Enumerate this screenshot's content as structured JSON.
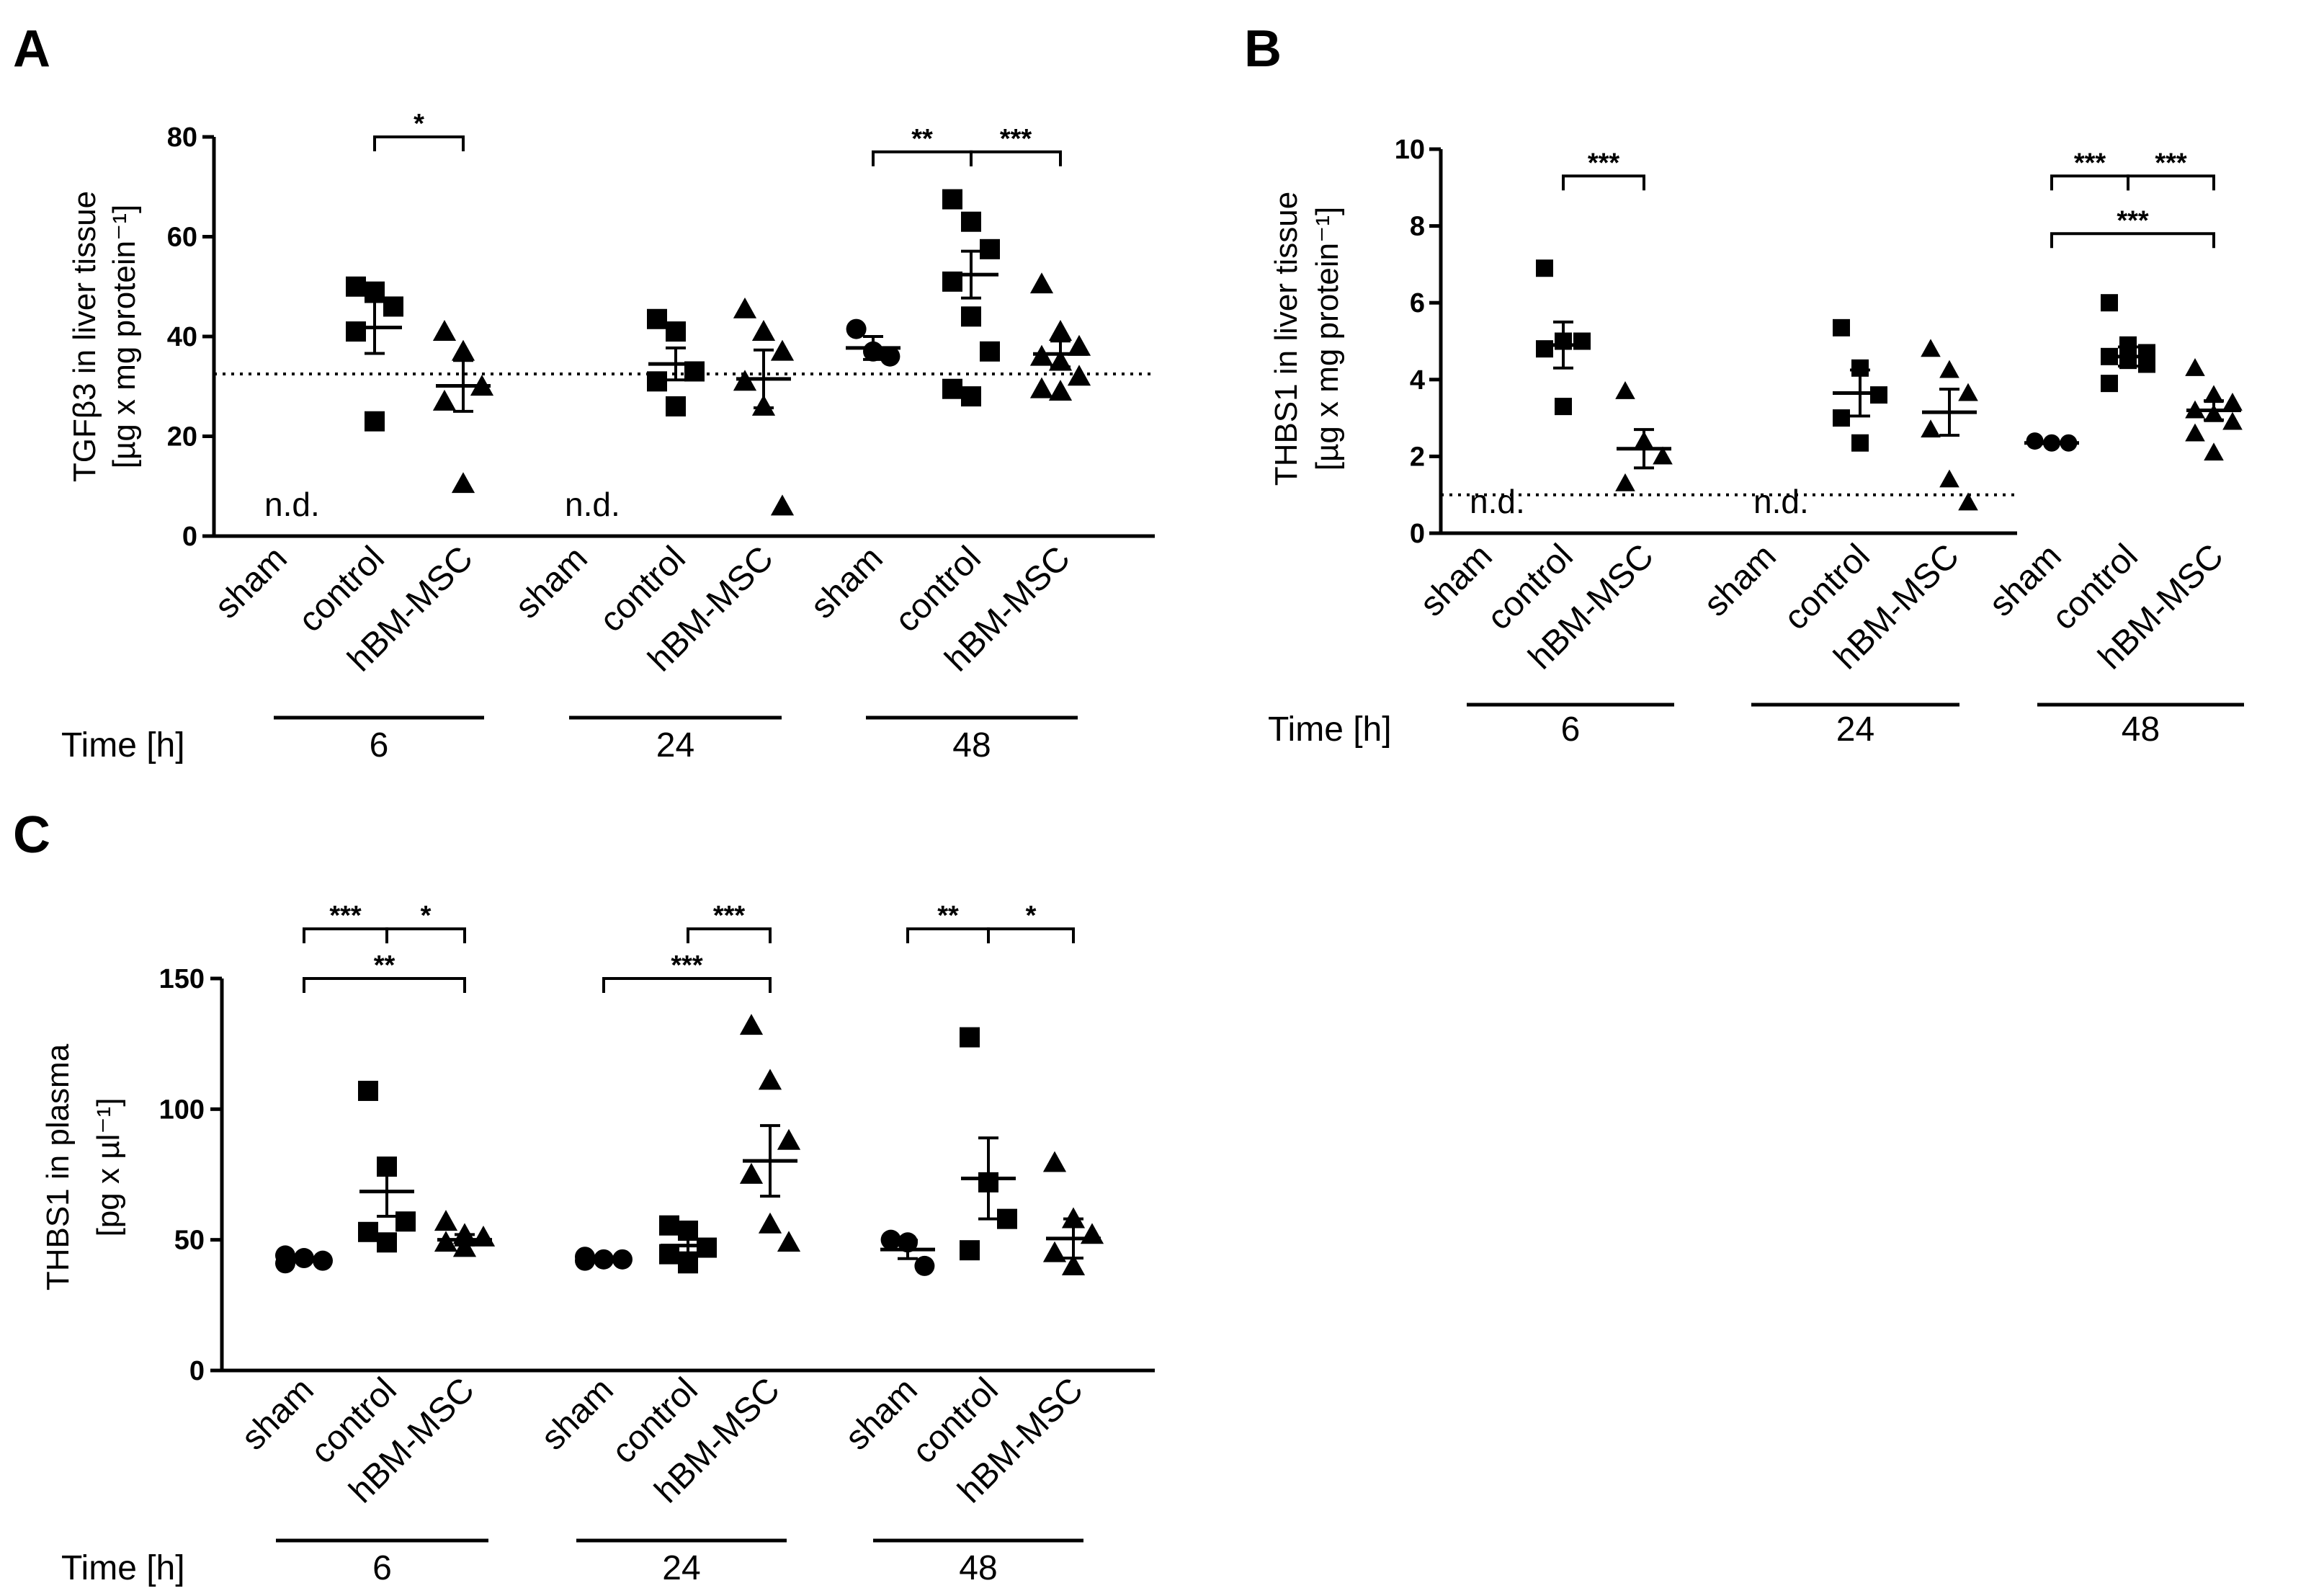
{
  "chart_data": [
    {
      "panel": "A",
      "type": "scatter",
      "ylabel": [
        "TGFβ3 in liver tissue",
        "[µg x mg protein⁻¹]"
      ],
      "ylim": [
        0,
        80
      ],
      "yticks": [
        "0",
        "20",
        "40",
        "60",
        "80"
      ],
      "reference_line": 32.5,
      "time_label": "Time  [h]",
      "groups": [
        {
          "time": "6",
          "nd_label": "n.d.",
          "categories": [
            "sham",
            "control",
            "hBM-MSC"
          ],
          "points": [
            [],
            [
              50,
              49,
              46,
              41,
              23
            ],
            [
              41,
              37,
              30,
              27,
              10.5
            ]
          ],
          "means": [
            null,
            41.8,
            30.1
          ],
          "sems": [
            null,
            5.2,
            5.1
          ]
        },
        {
          "time": "24",
          "nd_label": "n.d.",
          "categories": [
            "sham",
            "control",
            "hBM-MSC"
          ],
          "points": [
            [],
            [
              43.5,
              41,
              33,
              31,
              26
            ],
            [
              45.5,
              41,
              37,
              31,
              26,
              6
            ]
          ],
          "means": [
            null,
            34.5,
            31.5
          ],
          "sems": [
            null,
            3.2,
            5.8
          ]
        },
        {
          "time": "48",
          "nd_label": "",
          "categories": [
            "sham",
            "control",
            "hBM-MSC"
          ],
          "points": [
            [
              41.5,
              37,
              36
            ],
            [
              67.5,
              63,
              57.5,
              51,
              44,
              37,
              29.5,
              28
            ],
            [
              50.5,
              41,
              38,
              36,
              35,
              32,
              29.5,
              29
            ]
          ],
          "means": [
            37.7,
            52.4,
            36.5
          ],
          "sems": [
            2.3,
            4.7,
            2.6
          ]
        }
      ],
      "brackets": [
        {
          "group": 0,
          "from": 1,
          "to": 2,
          "level": 80,
          "label": "*"
        },
        {
          "group": 2,
          "from": 0,
          "to": 1,
          "level": 77,
          "label": "**"
        },
        {
          "group": 2,
          "from": 1,
          "to": 2,
          "level": 77,
          "label": "***"
        }
      ]
    },
    {
      "panel": "B",
      "type": "scatter",
      "ylabel": [
        "THBS1 in liver tissue",
        "[µg x mg protein⁻¹]"
      ],
      "ylim": [
        0,
        10
      ],
      "yticks": [
        "0",
        "2",
        "4",
        "6",
        "8",
        "10"
      ],
      "reference_line": 1.0,
      "time_label": "Time  [h]",
      "groups": [
        {
          "time": "6",
          "nd_label": "n.d.",
          "categories": [
            "sham",
            "control",
            "hBM-MSC"
          ],
          "points": [
            [],
            [
              6.9,
              5.0,
              5.0,
              4.8,
              3.3
            ],
            [
              3.7,
              2.4,
              2.0,
              1.3
            ]
          ],
          "means": [
            null,
            4.9,
            2.2
          ],
          "sems": [
            null,
            0.6,
            0.5
          ]
        },
        {
          "time": "24",
          "nd_label": "n.d.",
          "categories": [
            "sham",
            "control",
            "hBM-MSC"
          ],
          "points": [
            [],
            [
              5.35,
              4.3,
              3.6,
              3.0,
              2.35
            ],
            [
              4.8,
              4.25,
              3.65,
              2.7,
              1.4,
              0.8
            ]
          ],
          "means": [
            null,
            3.65,
            3.15
          ],
          "sems": [
            null,
            0.6,
            0.6
          ]
        },
        {
          "time": "48",
          "nd_label": "",
          "categories": [
            "sham",
            "control",
            "hBM-MSC"
          ],
          "points": [
            [
              2.4,
              2.35,
              2.35
            ],
            [
              6.0,
              4.9,
              4.7,
              4.6,
              4.5,
              4.4,
              3.9
            ],
            [
              4.3,
              3.6,
              3.4,
              3.2,
              3.1,
              2.9,
              2.6,
              2.1
            ]
          ],
          "means": [
            2.35,
            4.6,
            3.2
          ],
          "sems": [
            0.02,
            0.25,
            0.25
          ]
        }
      ],
      "brackets": [
        {
          "group": 0,
          "from": 1,
          "to": 2,
          "level": 9.3,
          "label": "***"
        },
        {
          "group": 2,
          "from": 0,
          "to": 1,
          "level": 9.3,
          "label": "***"
        },
        {
          "group": 2,
          "from": 1,
          "to": 2,
          "level": 9.3,
          "label": "***"
        },
        {
          "group": 2,
          "from": 0,
          "to": 2,
          "level": 7.8,
          "label": "***"
        }
      ]
    },
    {
      "panel": "C",
      "type": "scatter",
      "ylabel": [
        "THBS1 in plasma",
        "[pg x µl⁻¹]"
      ],
      "ylim": [
        0,
        150
      ],
      "yticks": [
        "0",
        "50",
        "100",
        "150"
      ],
      "reference_line": null,
      "time_label": "Time  [h]",
      "groups": [
        {
          "time": "6",
          "nd_label": "",
          "categories": [
            "sham",
            "control",
            "hBM-MSC"
          ],
          "points": [
            [
              44,
              43,
              42,
              41
            ],
            [
              107,
              78,
              57,
              53,
              49
            ],
            [
              57,
              52,
              51,
              49,
              47
            ]
          ],
          "means": [
            42.5,
            68.5,
            50.0
          ],
          "sems": [
            0.7,
            9.5,
            2.0
          ]
        },
        {
          "time": "24",
          "nd_label": "",
          "categories": [
            "sham",
            "control",
            "hBM-MSC"
          ],
          "points": [
            [
              43.5,
              42.5,
              42.5,
              42
            ],
            [
              55.5,
              53.5,
              47,
              44.5,
              41
            ],
            [
              132,
              111,
              88,
              75,
              56,
              49
            ]
          ],
          "means": [
            42.8,
            47.8,
            80.2
          ],
          "sems": [
            0.5,
            2.8,
            13.5
          ]
        },
        {
          "time": "48",
          "nd_label": "",
          "categories": [
            "sham",
            "control",
            "hBM-MSC"
          ],
          "points": [
            [
              50,
              49,
              40
            ],
            [
              127.5,
              72,
              58,
              46
            ],
            [
              79.5,
              58,
              52,
              45,
              40
            ]
          ],
          "means": [
            46.3,
            73.5,
            50.5
          ],
          "sems": [
            3.5,
            15.5,
            7.5
          ]
        }
      ],
      "brackets": [
        {
          "group": 0,
          "from": 0,
          "to": 1,
          "level": 169,
          "label": "***"
        },
        {
          "group": 0,
          "from": 1,
          "to": 2,
          "level": 169,
          "label": "*"
        },
        {
          "group": 0,
          "from": 0,
          "to": 2,
          "level": 150,
          "label": "**"
        },
        {
          "group": 1,
          "from": 1,
          "to": 2,
          "level": 169,
          "label": "***"
        },
        {
          "group": 1,
          "from": 0,
          "to": 2,
          "level": 150,
          "label": "***"
        },
        {
          "group": 2,
          "from": 0,
          "to": 1,
          "level": 169,
          "label": "**"
        },
        {
          "group": 2,
          "from": 1,
          "to": 2,
          "level": 169,
          "label": "*"
        }
      ]
    }
  ]
}
